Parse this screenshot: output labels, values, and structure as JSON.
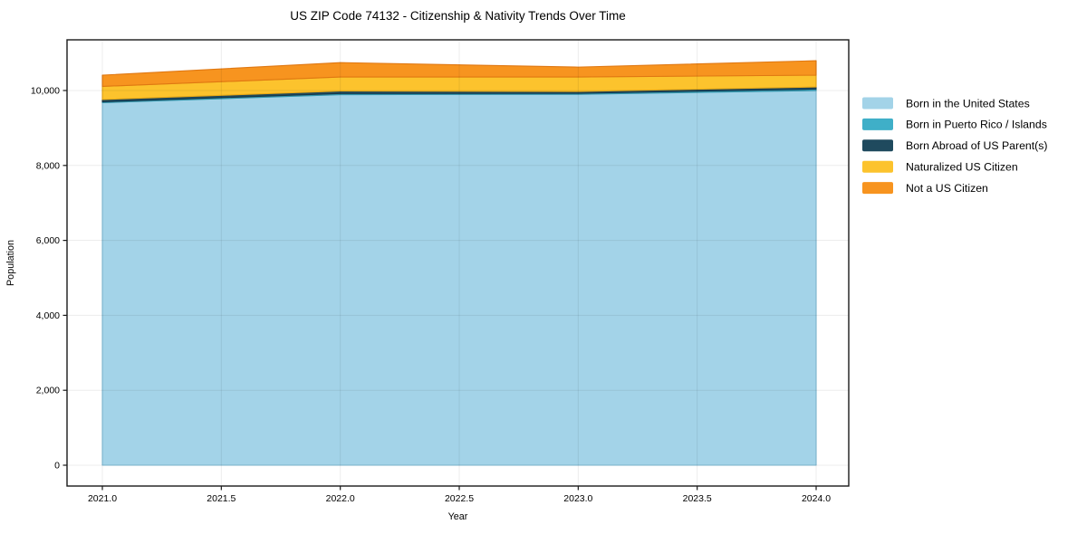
{
  "page": {
    "background": "#ffffff"
  },
  "chart_data": {
    "type": "area",
    "stacked": true,
    "title": "US ZIP Code 74132 - Citizenship & Nativity Trends Over Time",
    "xlabel": "Year",
    "ylabel": "Population",
    "x": [
      2021,
      2022,
      2023,
      2024
    ],
    "series": [
      {
        "name": "Born in the United States",
        "values": [
          9675,
          9890,
          9900,
          10000
        ],
        "fill": "#a3d3e8",
        "edge": "#84bfda"
      },
      {
        "name": "Born in Puerto Rico / Islands",
        "values": [
          25,
          30,
          25,
          40
        ],
        "fill": "#3fafc8",
        "edge": "#2f93a9"
      },
      {
        "name": "Born Abroad of US Parent(s)",
        "values": [
          60,
          65,
          50,
          55
        ],
        "fill": "#1f4a5e",
        "edge": "#16374a"
      },
      {
        "name": "Naturalized US Citizen",
        "values": [
          350,
          375,
          385,
          315
        ],
        "fill": "#fcc32d",
        "edge": "#eaa915"
      },
      {
        "name": "Not a US Citizen",
        "values": [
          300,
          385,
          265,
          385
        ],
        "fill": "#f7941f",
        "edge": "#e07812"
      }
    ],
    "totals": [
      10410,
      10745,
      10625,
      10795
    ],
    "xlim": [
      2020.8515,
      2024.137
    ],
    "ylim": [
      -555.5,
      11352.7
    ],
    "xticks": {
      "values": [
        2021.0,
        2021.5,
        2022.0,
        2022.5,
        2023.0,
        2023.5,
        2024.0
      ],
      "labels": [
        "2021.0",
        "2021.5",
        "2022.0",
        "2022.5",
        "2023.0",
        "2023.5",
        "2024.0"
      ]
    },
    "yticks": {
      "values": [
        0,
        2000,
        4000,
        6000,
        8000,
        10000
      ],
      "labels": [
        "0",
        "2,000",
        "4,000",
        "6,000",
        "8,000",
        "10,000"
      ]
    },
    "grid": true,
    "legend_position": "right",
    "colors": {
      "grid": "rgba(0,0,0,0.075)",
      "spine": "#1a1a1a",
      "text": "#000000"
    }
  }
}
